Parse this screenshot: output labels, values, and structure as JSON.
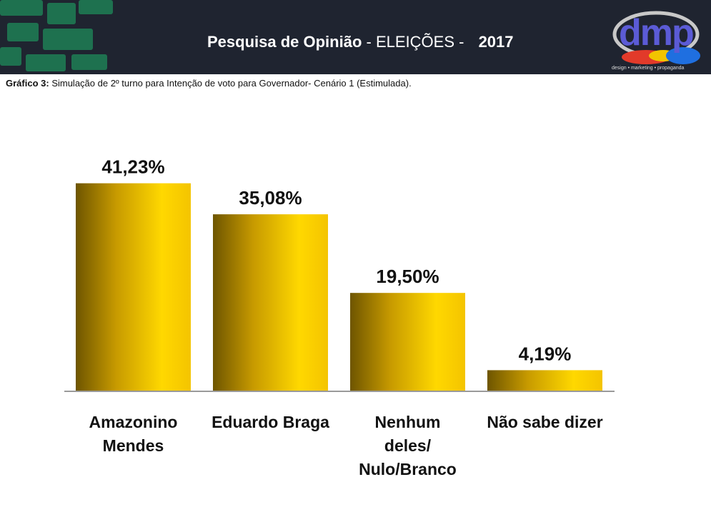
{
  "header": {
    "title_bold": "Pesquisa de Opinião",
    "title_rest": "- ELEIÇÕES -",
    "year": "2017",
    "logo_text": "dmp",
    "logo_tagline": "design • marketing • propaganda"
  },
  "caption": {
    "prefix": "Gráfico 3:",
    "text": "Simulação de 2º turno para Intenção de voto para Governador- Cenário 1 (Estimulada)."
  },
  "chart_data": {
    "type": "bar",
    "categories": [
      "Amazonino Mendes",
      "Eduardo Braga",
      "Nenhum deles/ Nulo/Branco",
      "Não sabe dizer"
    ],
    "category_lines": [
      [
        "Amazonino",
        "Mendes"
      ],
      [
        "Eduardo Braga"
      ],
      [
        "Nenhum",
        "deles/",
        "Nulo/Branco"
      ],
      [
        "Não sabe dizer"
      ]
    ],
    "values": [
      41.23,
      35.08,
      19.5,
      4.19
    ],
    "data_labels": [
      "41,23%",
      "35,08%",
      "19,50%",
      "4,19%"
    ],
    "ylim": [
      0,
      45
    ],
    "grid": false,
    "legend": "none",
    "bar_color": "#e8b800"
  }
}
